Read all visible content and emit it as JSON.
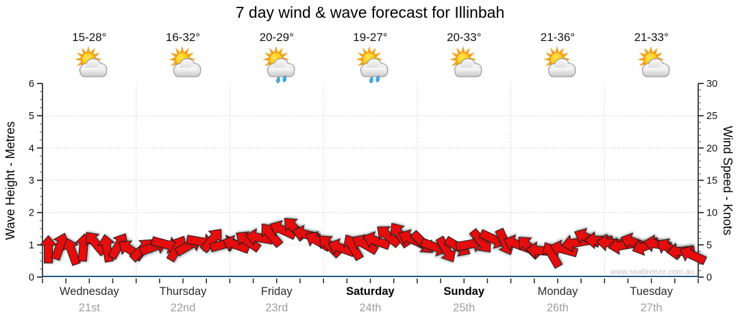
{
  "chart_data": {
    "type": "wind-wave-forecast",
    "title": "7 day wind & wave forecast for Illinbah",
    "watermark": "www.seabreeze.com.au",
    "grid": "dotted horizontal lines at each metre, dotted vertical lines at day boundaries",
    "left_axis": {
      "label": "Wave Height - Metres",
      "min": 0,
      "max": 6,
      "major_tick_step": 1,
      "minor_tick_step": 0.25,
      "tick_labels": [
        "0",
        "1",
        "2",
        "3",
        "4",
        "5",
        "6"
      ]
    },
    "right_axis": {
      "label": "Wind Speed - Knots",
      "min": 0,
      "max": 30,
      "major_tick_step": 5,
      "minor_tick_step": 1,
      "tick_labels": [
        "0",
        "5",
        "10",
        "15",
        "20",
        "25",
        "30"
      ]
    },
    "x_axis": {
      "minor_ticks_per_day": 4,
      "days": [
        {
          "name": "Wednesday",
          "date": "21st",
          "temp_range": "15-28°",
          "icon": "sun-cloud",
          "weekend": false
        },
        {
          "name": "Thursday",
          "date": "22nd",
          "temp_range": "16-32°",
          "icon": "sun-cloud",
          "weekend": false
        },
        {
          "name": "Friday",
          "date": "23rd",
          "temp_range": "20-29°",
          "icon": "sun-cloud-rain",
          "weekend": false
        },
        {
          "name": "Saturday",
          "date": "24th",
          "temp_range": "19-27°",
          "icon": "sun-cloud-rain",
          "weekend": true
        },
        {
          "name": "Sunday",
          "date": "25th",
          "temp_range": "20-33°",
          "icon": "sun-cloud",
          "weekend": true
        },
        {
          "name": "Monday",
          "date": "26th",
          "temp_range": "21-36°",
          "icon": "sun-cloud",
          "weekend": false
        },
        {
          "name": "Tuesday",
          "date": "27th",
          "temp_range": "21-33°",
          "icon": "sun-cloud",
          "weekend": false
        }
      ]
    },
    "wave_height_line": {
      "color": "#1f5c82",
      "constant_value_m": 0.05,
      "note": "flat line at ~0 metres across all 7 days"
    },
    "wind_arrows": {
      "color": "#e60d0d",
      "outline_color": "#1c1c1c",
      "samples_per_day": 8,
      "speeds_knots": [
        4.3,
        4.8,
        4.0,
        4.6,
        5.3,
        4.5,
        4.9,
        4.2,
        4.3,
        4.7,
        5.1,
        4.5,
        4.9,
        5.5,
        5.8,
        5.1,
        5.0,
        5.6,
        6.1,
        6.6,
        7.3,
        7.6,
        6.6,
        5.6,
        4.9,
        4.5,
        4.7,
        5.1,
        5.6,
        6.4,
        6.6,
        5.9,
        5.3,
        4.7,
        4.2,
        4.7,
        5.1,
        5.5,
        5.9,
        5.4,
        5.1,
        4.7,
        4.1,
        3.5,
        4.3,
        5.3,
        6.1,
        5.7,
        5.3,
        4.9,
        5.4,
        4.8,
        5.1,
        4.5,
        4.0,
        3.4
      ],
      "directions_deg": [
        -90,
        -70,
        -110,
        -85,
        -130,
        -100,
        -60,
        -145,
        -45,
        -20,
        15,
        -60,
        -30,
        10,
        -50,
        -15,
        200,
        215,
        190,
        230,
        205,
        225,
        195,
        210,
        225,
        200,
        240,
        210,
        200,
        220,
        235,
        205,
        45,
        20,
        60,
        30,
        -10,
        50,
        25,
        65,
        200,
        225,
        185,
        240,
        195,
        170,
        205,
        180,
        185,
        170,
        200,
        160,
        190,
        210,
        175,
        205
      ]
    },
    "colors": {
      "background": "#ffffff",
      "grid": "#b5b5b5",
      "axis": "#1a1a1a",
      "date_text": "#9e9e9e",
      "watermark_text": "#c4c4c4",
      "sun": "#ffcc33",
      "sun_rays": "#f2a41f",
      "cloud": "#d9d9d9",
      "rain_drop": "#45b1e8"
    }
  }
}
